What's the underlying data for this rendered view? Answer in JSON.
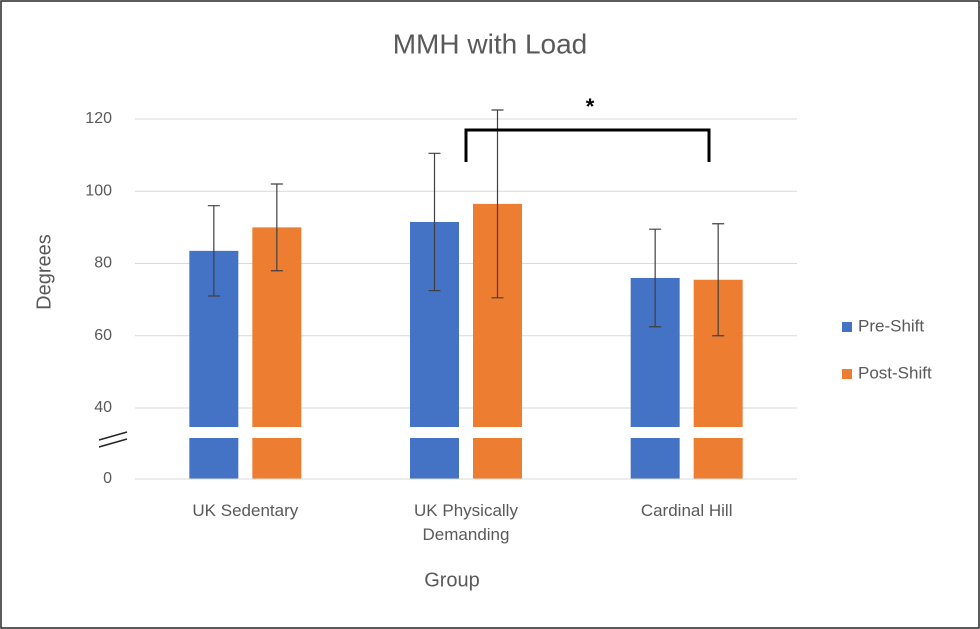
{
  "chart_data": {
    "type": "bar",
    "title": "MMH with Load",
    "x_label": "Group",
    "y_label": "Degrees",
    "categories": [
      "UK Sedentary",
      "UK Physically Demanding",
      "Cardinal Hill"
    ],
    "series": [
      {
        "name": "Pre-Shift",
        "color": "#4472c4",
        "values": [
          83.5,
          91.5,
          76
        ],
        "errors": [
          12.5,
          19,
          13.5
        ]
      },
      {
        "name": "Post-Shift",
        "color": "#ed7d31",
        "values": [
          90,
          96.5,
          75.5
        ],
        "errors": [
          12,
          26,
          15.5
        ]
      }
    ],
    "ylim": [
      0,
      120
    ],
    "yticks": [
      0,
      40,
      60,
      80,
      100,
      120
    ],
    "axis_break": [
      0,
      40
    ],
    "grid": true,
    "legend": "right",
    "annotations": [
      {
        "text": "*"
      }
    ]
  }
}
